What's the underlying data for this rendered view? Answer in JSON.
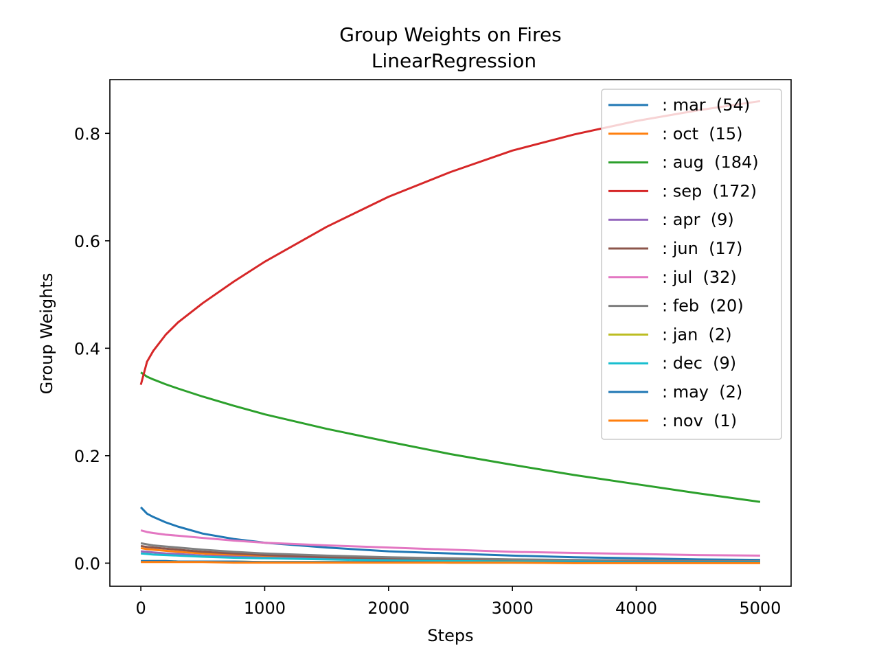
{
  "chart_data": {
    "type": "line",
    "title": "Group Weights on Fires",
    "subtitle": "LinearRegression",
    "xlabel": "Steps",
    "ylabel": "Group Weights",
    "xlim": [
      -250,
      5250
    ],
    "ylim": [
      -0.043,
      0.9
    ],
    "xticks": [
      0,
      1000,
      2000,
      3000,
      4000,
      5000
    ],
    "xtick_labels": [
      "0",
      "1000",
      "2000",
      "3000",
      "4000",
      "5000"
    ],
    "yticks": [
      0.0,
      0.2,
      0.4,
      0.6,
      0.8
    ],
    "ytick_labels": [
      "0.0",
      "0.2",
      "0.4",
      "0.6",
      "0.8"
    ],
    "grid": false,
    "legend_position": "top-right",
    "x": [
      0,
      50,
      100,
      200,
      300,
      500,
      750,
      1000,
      1500,
      2000,
      2500,
      3000,
      3500,
      4000,
      4500,
      5000
    ],
    "series": [
      {
        "name": ": mar  (54)",
        "color": "#1f77b4",
        "values": [
          0.104,
          0.092,
          0.086,
          0.076,
          0.068,
          0.055,
          0.045,
          0.038,
          0.029,
          0.022,
          0.018,
          0.014,
          0.011,
          0.009,
          0.007,
          0.006
        ]
      },
      {
        "name": ": oct  (15)",
        "color": "#ff7f0e",
        "values": [
          0.028,
          0.026,
          0.025,
          0.023,
          0.021,
          0.018,
          0.015,
          0.013,
          0.01,
          0.008,
          0.006,
          0.005,
          0.004,
          0.003,
          0.002,
          0.002
        ]
      },
      {
        "name": ": aug  (184)",
        "color": "#2ca02c",
        "values": [
          0.355,
          0.347,
          0.342,
          0.333,
          0.325,
          0.31,
          0.293,
          0.277,
          0.25,
          0.226,
          0.203,
          0.183,
          0.164,
          0.147,
          0.13,
          0.114
        ]
      },
      {
        "name": ": sep  (172)",
        "color": "#d62728",
        "values": [
          0.332,
          0.375,
          0.395,
          0.425,
          0.448,
          0.484,
          0.524,
          0.561,
          0.626,
          0.682,
          0.728,
          0.768,
          0.798,
          0.823,
          0.843,
          0.86
        ]
      },
      {
        "name": ": apr  (9)",
        "color": "#9467bd",
        "values": [
          0.022,
          0.021,
          0.02,
          0.018,
          0.017,
          0.014,
          0.012,
          0.01,
          0.008,
          0.006,
          0.005,
          0.004,
          0.003,
          0.002,
          0.002,
          0.002
        ]
      },
      {
        "name": ": jun  (17)",
        "color": "#8c564b",
        "values": [
          0.032,
          0.03,
          0.029,
          0.027,
          0.025,
          0.021,
          0.018,
          0.015,
          0.011,
          0.009,
          0.007,
          0.005,
          0.004,
          0.003,
          0.003,
          0.002
        ]
      },
      {
        "name": ": jul  (32)",
        "color": "#e377c2",
        "values": [
          0.061,
          0.058,
          0.056,
          0.053,
          0.051,
          0.047,
          0.042,
          0.038,
          0.033,
          0.029,
          0.025,
          0.021,
          0.019,
          0.017,
          0.015,
          0.014
        ]
      },
      {
        "name": ": feb  (20)",
        "color": "#7f7f7f",
        "values": [
          0.037,
          0.035,
          0.033,
          0.031,
          0.029,
          0.025,
          0.021,
          0.018,
          0.014,
          0.011,
          0.009,
          0.007,
          0.006,
          0.005,
          0.004,
          0.004
        ]
      },
      {
        "name": ": jan  (2)",
        "color": "#bcbd22",
        "values": [
          0.004,
          0.004,
          0.004,
          0.004,
          0.003,
          0.003,
          0.003,
          0.002,
          0.002,
          0.002,
          0.001,
          0.001,
          0.001,
          0.001,
          0.001,
          0.001
        ]
      },
      {
        "name": ": dec  (9)",
        "color": "#17becf",
        "values": [
          0.018,
          0.017,
          0.016,
          0.015,
          0.014,
          0.012,
          0.01,
          0.009,
          0.007,
          0.005,
          0.004,
          0.003,
          0.003,
          0.002,
          0.002,
          0.002
        ]
      },
      {
        "name": ": may  (2)",
        "color": "#1f77b4",
        "values": [
          0.004,
          0.004,
          0.004,
          0.004,
          0.003,
          0.003,
          0.003,
          0.002,
          0.002,
          0.002,
          0.001,
          0.001,
          0.001,
          0.001,
          0.001,
          0.001
        ]
      },
      {
        "name": ": nov  (1)",
        "color": "#ff7f0e",
        "values": [
          0.002,
          0.002,
          0.002,
          0.002,
          0.002,
          0.002,
          0.001,
          0.001,
          0.001,
          0.001,
          0.001,
          0.001,
          0.0,
          0.0,
          0.0,
          0.0
        ]
      }
    ]
  }
}
